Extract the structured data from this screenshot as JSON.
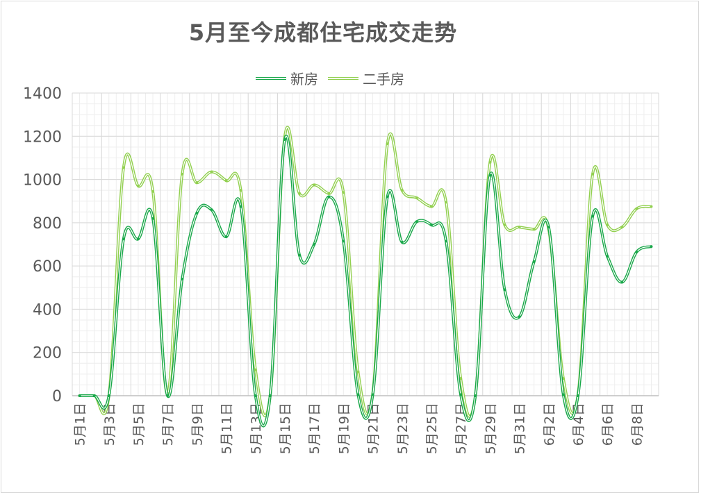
{
  "chart_data": {
    "type": "line",
    "title": "5月至今成都住宅成交走势",
    "ylim": [
      0,
      1400
    ],
    "yticks": [
      0,
      200,
      400,
      600,
      800,
      1000,
      1200,
      1400
    ],
    "xlabel": "",
    "ylabel": "",
    "grid": true,
    "legend_position": "top",
    "tick_labels": [
      "5月1日",
      "5月3日",
      "5月5日",
      "5月7日",
      "5月9日",
      "5月11日",
      "5月13日",
      "5月15日",
      "5月17日",
      "5月19日",
      "5月21日",
      "5月23日",
      "5月25日",
      "5月27日",
      "5月29日",
      "5月31日",
      "6月2日",
      "6月4日",
      "6月6日",
      "6月8日"
    ],
    "x": [
      "5月1日",
      "5月2日",
      "5月3日",
      "5月4日",
      "5月5日",
      "5月6日",
      "5月7日",
      "5月8日",
      "5月9日",
      "5月10日",
      "5月11日",
      "5月12日",
      "5月13日",
      "5月14日",
      "5月15日",
      "5月16日",
      "5月17日",
      "5月18日",
      "5月19日",
      "5月20日",
      "5月21日",
      "5月22日",
      "5月23日",
      "5月24日",
      "5月25日",
      "5月26日",
      "5月27日",
      "5月28日",
      "5月29日",
      "5月30日",
      "5月31日",
      "6月1日",
      "6月2日",
      "6月3日",
      "6月4日",
      "6月5日",
      "6月6日",
      "6月7日",
      "6月8日",
      "6月9日"
    ],
    "series": [
      {
        "name": "新房",
        "color": "#1aa84a",
        "values": [
          0,
          0,
          0,
          725,
          725,
          820,
          0,
          540,
          845,
          860,
          735,
          875,
          0,
          0,
          1185,
          650,
          700,
          920,
          715,
          5,
          5,
          920,
          710,
          805,
          790,
          715,
          5,
          0,
          1020,
          490,
          365,
          620,
          780,
          5,
          0,
          830,
          645,
          525,
          665,
          690
        ]
      },
      {
        "name": "二手房",
        "color": "#92d050",
        "values": [
          0,
          0,
          0,
          1055,
          970,
          945,
          10,
          1025,
          985,
          1035,
          995,
          950,
          120,
          0,
          1200,
          935,
          975,
          935,
          940,
          110,
          10,
          1165,
          950,
          915,
          875,
          895,
          80,
          0,
          1080,
          790,
          780,
          770,
          770,
          80,
          5,
          1025,
          790,
          780,
          865,
          875
        ]
      }
    ]
  }
}
